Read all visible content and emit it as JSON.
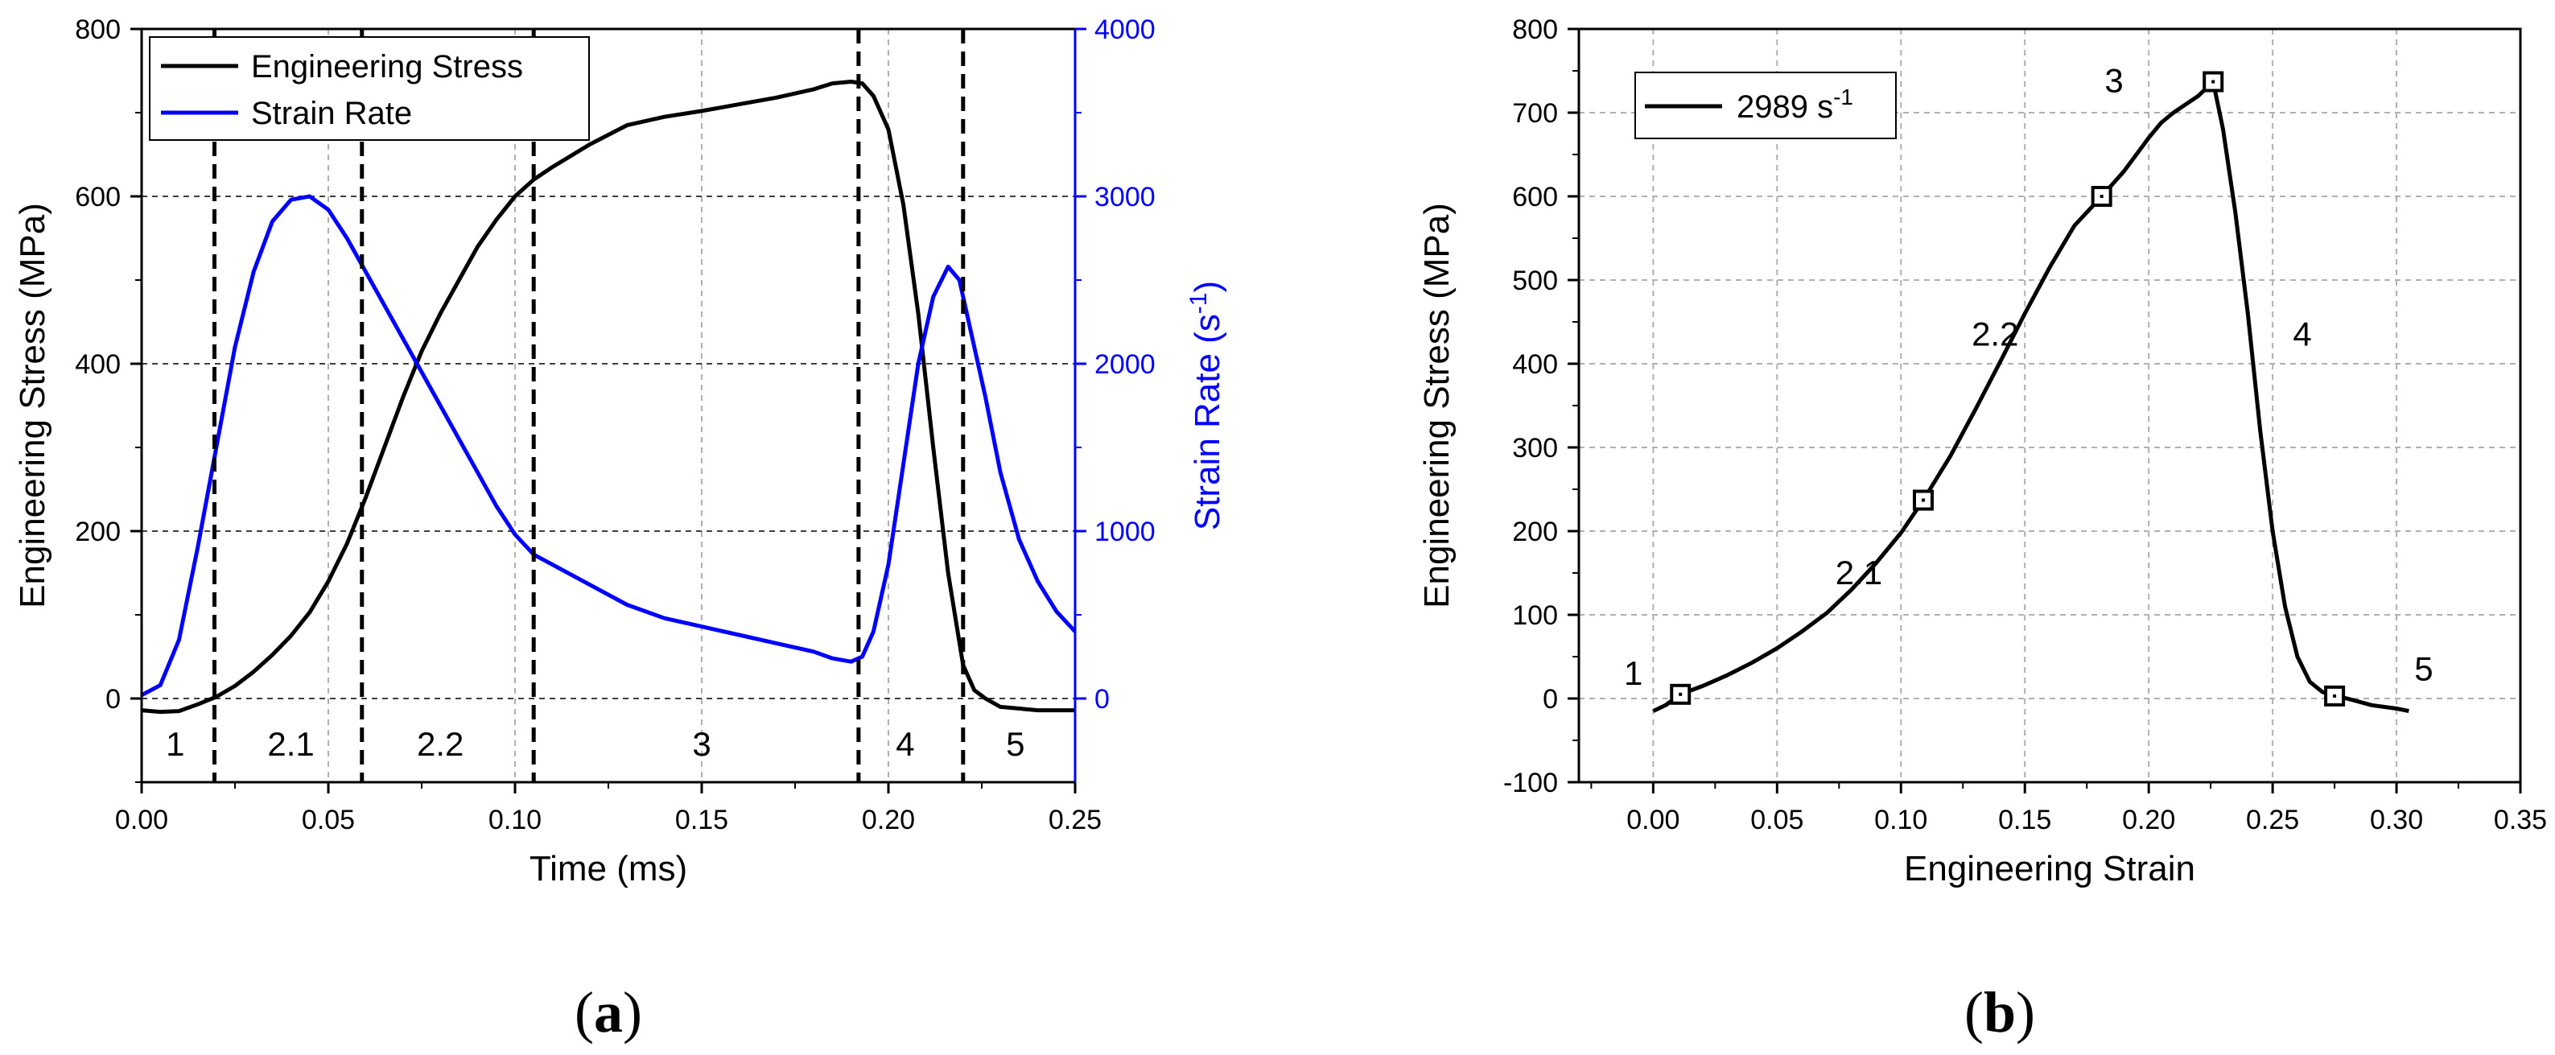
{
  "chart_data": [
    {
      "type": "line",
      "panel_label": "(a)",
      "panel_letter": "a",
      "xlabel": "Time (ms)",
      "ylabel": "Engineering Stress (MPa)",
      "y2label_base": "Strain Rate (s",
      "y2label_sup": "-1",
      "y2label_end": ")",
      "xlim": [
        0.0,
        0.25
      ],
      "ylim": [
        -100,
        800
      ],
      "y2lim": [
        -500,
        4000
      ],
      "xticks": [
        "0.00",
        "0.05",
        "0.10",
        "0.15",
        "0.20",
        "0.25"
      ],
      "yticks": [
        "0",
        "200",
        "400",
        "600",
        "800"
      ],
      "y2ticks": [
        "0",
        "1000",
        "2000",
        "3000",
        "4000"
      ],
      "legend_position": "top-left",
      "series": [
        {
          "name": "Engineering Stress",
          "axis": "left",
          "color": "#000000",
          "x": [
            0.0,
            0.005,
            0.01,
            0.015,
            0.02,
            0.025,
            0.03,
            0.035,
            0.04,
            0.045,
            0.05,
            0.055,
            0.06,
            0.065,
            0.07,
            0.075,
            0.08,
            0.085,
            0.09,
            0.095,
            0.1,
            0.105,
            0.11,
            0.12,
            0.13,
            0.14,
            0.15,
            0.16,
            0.17,
            0.18,
            0.185,
            0.19,
            0.193,
            0.196,
            0.2,
            0.204,
            0.208,
            0.212,
            0.216,
            0.22,
            0.223,
            0.226,
            0.23,
            0.24,
            0.25
          ],
          "values": [
            -14,
            -16,
            -15,
            -7,
            2,
            15,
            32,
            52,
            75,
            103,
            140,
            185,
            240,
            300,
            360,
            415,
            460,
            500,
            540,
            572,
            600,
            620,
            635,
            662,
            685,
            695,
            702,
            710,
            718,
            728,
            735,
            737,
            735,
            720,
            680,
            590,
            460,
            300,
            150,
            40,
            10,
            0,
            -10,
            -14,
            -14
          ]
        },
        {
          "name": "Strain Rate",
          "axis": "right",
          "color": "#0000ff",
          "x": [
            0.0,
            0.005,
            0.01,
            0.015,
            0.02,
            0.025,
            0.03,
            0.035,
            0.04,
            0.045,
            0.05,
            0.055,
            0.06,
            0.065,
            0.07,
            0.075,
            0.08,
            0.085,
            0.09,
            0.095,
            0.1,
            0.105,
            0.11,
            0.12,
            0.13,
            0.14,
            0.15,
            0.16,
            0.17,
            0.18,
            0.185,
            0.19,
            0.193,
            0.196,
            0.2,
            0.204,
            0.208,
            0.212,
            0.216,
            0.219,
            0.222,
            0.226,
            0.23,
            0.235,
            0.24,
            0.245,
            0.25
          ],
          "values": [
            20,
            80,
            350,
            900,
            1500,
            2100,
            2550,
            2850,
            2980,
            3000,
            2920,
            2750,
            2550,
            2350,
            2150,
            1950,
            1750,
            1550,
            1350,
            1150,
            980,
            860,
            800,
            680,
            560,
            480,
            430,
            380,
            330,
            280,
            240,
            220,
            250,
            400,
            800,
            1400,
            2000,
            2400,
            2580,
            2500,
            2200,
            1800,
            1350,
            950,
            700,
            520,
            400
          ]
        }
      ],
      "vlines": [
        0.0195,
        0.059,
        0.105,
        0.192,
        0.22
      ],
      "regions": [
        {
          "label": "1",
          "x": 0.009,
          "y": -55
        },
        {
          "label": "2.1",
          "x": 0.04,
          "y": -55
        },
        {
          "label": "2.2",
          "x": 0.08,
          "y": -55
        },
        {
          "label": "3",
          "x": 0.15,
          "y": -55
        },
        {
          "label": "4",
          "x": 0.2045,
          "y": -55
        },
        {
          "label": "5",
          "x": 0.234,
          "y": -55
        }
      ]
    },
    {
      "type": "line",
      "panel_label": "(b)",
      "panel_letter": "b",
      "xlabel": "Engineering Strain",
      "ylabel": "Engineering Stress (MPa)",
      "xlim": [
        -0.03,
        0.35
      ],
      "ylim": [
        -100,
        800
      ],
      "xticks": [
        "0.00",
        "0.05",
        "0.10",
        "0.15",
        "0.20",
        "0.25",
        "0.30",
        "0.35"
      ],
      "yticks": [
        "-100",
        "0",
        "100",
        "200",
        "300",
        "400",
        "500",
        "600",
        "700",
        "800"
      ],
      "legend_position": "top-left",
      "series": [
        {
          "name_base": "2989 s",
          "name_sup": "-1",
          "color": "#000000",
          "x": [
            0.0,
            0.005,
            0.011,
            0.02,
            0.03,
            0.04,
            0.05,
            0.06,
            0.07,
            0.08,
            0.09,
            0.1,
            0.109,
            0.12,
            0.13,
            0.14,
            0.15,
            0.16,
            0.17,
            0.181,
            0.19,
            0.2,
            0.205,
            0.21,
            0.215,
            0.22,
            0.226,
            0.23,
            0.235,
            0.24,
            0.245,
            0.25,
            0.255,
            0.26,
            0.265,
            0.27,
            0.275,
            0.28,
            0.29,
            0.3,
            0.305
          ],
          "values": [
            -15,
            -8,
            5,
            15,
            28,
            43,
            60,
            80,
            102,
            130,
            162,
            198,
            237,
            290,
            345,
            402,
            460,
            515,
            565,
            600,
            630,
            670,
            688,
            700,
            710,
            720,
            737,
            680,
            580,
            460,
            320,
            200,
            110,
            50,
            20,
            8,
            3,
            0,
            -8,
            -12,
            -15
          ]
        }
      ],
      "markers": {
        "x": [
          0.011,
          0.109,
          0.181,
          0.226,
          0.275
        ],
        "y": [
          5,
          237,
          600,
          737,
          3
        ]
      },
      "regions": [
        {
          "label": "1",
          "x": -0.008,
          "y": 30
        },
        {
          "label": "2.1",
          "x": 0.083,
          "y": 150
        },
        {
          "label": "2.2",
          "x": 0.138,
          "y": 435
        },
        {
          "label": "3",
          "x": 0.186,
          "y": 738
        },
        {
          "label": "4",
          "x": 0.262,
          "y": 435
        },
        {
          "label": "5",
          "x": 0.311,
          "y": 35
        }
      ]
    }
  ]
}
